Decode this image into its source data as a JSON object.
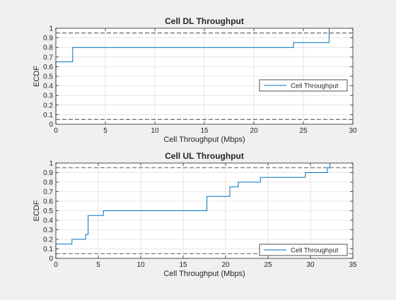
{
  "chart_data": [
    {
      "type": "line",
      "title": "Cell DL Throughput",
      "xlabel": "Cell Throughput (Mbps)",
      "ylabel": "ECDF",
      "xlim": [
        0,
        30
      ],
      "ylim": [
        0,
        1
      ],
      "xticks": [
        0,
        5,
        10,
        15,
        20,
        25,
        30
      ],
      "yticks": [
        0,
        0.1,
        0.2,
        0.3,
        0.4,
        0.5,
        0.6,
        0.7,
        0.8,
        0.9,
        1
      ],
      "grid": true,
      "legend": {
        "location": "right",
        "entries": [
          "Cell Throughput"
        ]
      },
      "series": [
        {
          "name": "Cell Throughput",
          "color": "#0072bd",
          "step": true,
          "x": [
            0,
            0,
            1.7,
            1.7,
            24,
            24,
            27.6,
            27.6
          ],
          "y": [
            0,
            0.65,
            0.65,
            0.8,
            0.8,
            0.85,
            0.85,
            1
          ]
        }
      ],
      "reference_lines": [
        {
          "y": 0.05,
          "color": "#262626",
          "style": "dashed"
        },
        {
          "y": 0.95,
          "color": "#262626",
          "style": "dashed"
        }
      ]
    },
    {
      "type": "line",
      "title": "Cell UL Throughput",
      "xlabel": "Cell Throughput (Mbps)",
      "ylabel": "ECDF",
      "xlim": [
        0,
        35
      ],
      "ylim": [
        0,
        1
      ],
      "xticks": [
        0,
        5,
        10,
        15,
        20,
        25,
        30,
        35
      ],
      "yticks": [
        0,
        0.1,
        0.2,
        0.3,
        0.4,
        0.5,
        0.6,
        0.7,
        0.8,
        0.9,
        1
      ],
      "grid": true,
      "legend": {
        "location": "bottom-right",
        "entries": [
          "Cell Throughput"
        ]
      },
      "series": [
        {
          "name": "Cell Throughput",
          "color": "#0072bd",
          "step": true,
          "x": [
            0,
            0,
            1.9,
            1.9,
            3.5,
            3.5,
            3.8,
            3.8,
            5.6,
            5.6,
            17.8,
            17.8,
            20.5,
            20.5,
            21.5,
            21.5,
            24.1,
            24.1,
            29.4,
            29.4,
            32,
            32,
            32.3,
            32.3
          ],
          "y": [
            0,
            0.15,
            0.15,
            0.2,
            0.2,
            0.25,
            0.25,
            0.45,
            0.45,
            0.5,
            0.5,
            0.65,
            0.65,
            0.75,
            0.75,
            0.8,
            0.8,
            0.85,
            0.85,
            0.9,
            0.9,
            0.95,
            0.95,
            1
          ]
        }
      ],
      "reference_lines": [
        {
          "y": 0.05,
          "color": "#262626",
          "style": "dashed"
        },
        {
          "y": 0.95,
          "color": "#262626",
          "style": "dashed"
        }
      ]
    }
  ]
}
